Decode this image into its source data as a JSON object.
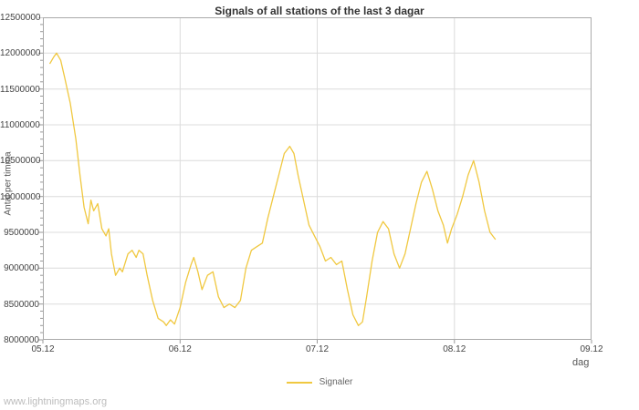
{
  "page": {
    "watermark": "www.lightningmaps.org"
  },
  "chart_data": {
    "type": "line",
    "title": "Signals of all stations of the last 3 dagar",
    "xlabel": "dag",
    "ylabel": "Antal per timma",
    "series_name": "Signaler",
    "line_color": "#f0c840",
    "grid": true,
    "legend_position": "bottom",
    "xlim": [
      0,
      4
    ],
    "ylim": [
      8000000,
      12500000
    ],
    "xticks": [
      {
        "pos": 0,
        "label": "05.12"
      },
      {
        "pos": 1,
        "label": "06.12"
      },
      {
        "pos": 2,
        "label": "07.12"
      },
      {
        "pos": 3,
        "label": "08.12"
      },
      {
        "pos": 4,
        "label": "09.12"
      }
    ],
    "yticks": [
      8000000,
      8500000,
      9000000,
      9500000,
      10000000,
      10500000,
      11000000,
      11500000,
      12000000,
      12500000
    ],
    "x": [
      0.05,
      0.08,
      0.1,
      0.13,
      0.16,
      0.2,
      0.24,
      0.27,
      0.3,
      0.33,
      0.35,
      0.37,
      0.4,
      0.43,
      0.46,
      0.48,
      0.5,
      0.53,
      0.56,
      0.58,
      0.62,
      0.65,
      0.68,
      0.7,
      0.73,
      0.76,
      0.8,
      0.84,
      0.88,
      0.9,
      0.93,
      0.96,
      1.0,
      1.04,
      1.08,
      1.1,
      1.13,
      1.16,
      1.2,
      1.24,
      1.28,
      1.32,
      1.36,
      1.4,
      1.44,
      1.48,
      1.52,
      1.56,
      1.6,
      1.64,
      1.68,
      1.72,
      1.76,
      1.8,
      1.83,
      1.86,
      1.9,
      1.94,
      1.98,
      2.02,
      2.06,
      2.1,
      2.14,
      2.18,
      2.22,
      2.26,
      2.3,
      2.33,
      2.36,
      2.4,
      2.44,
      2.48,
      2.52,
      2.56,
      2.6,
      2.64,
      2.68,
      2.72,
      2.76,
      2.8,
      2.84,
      2.88,
      2.92,
      2.95,
      2.98,
      3.02,
      3.06,
      3.1,
      3.14,
      3.18,
      3.22,
      3.26,
      3.3
    ],
    "values": [
      11850000,
      11950000,
      12000000,
      11900000,
      11650000,
      11300000,
      10800000,
      10300000,
      9850000,
      9620000,
      9950000,
      9800000,
      9900000,
      9550000,
      9450000,
      9550000,
      9200000,
      8900000,
      9000000,
      8950000,
      9200000,
      9250000,
      9150000,
      9250000,
      9200000,
      8900000,
      8550000,
      8300000,
      8250000,
      8200000,
      8280000,
      8220000,
      8450000,
      8800000,
      9050000,
      9150000,
      8950000,
      8700000,
      8900000,
      8950000,
      8600000,
      8450000,
      8500000,
      8450000,
      8550000,
      9000000,
      9250000,
      9300000,
      9350000,
      9700000,
      10000000,
      10300000,
      10600000,
      10700000,
      10600000,
      10300000,
      9950000,
      9600000,
      9450000,
      9300000,
      9100000,
      9150000,
      9050000,
      9100000,
      8700000,
      8350000,
      8200000,
      8250000,
      8600000,
      9100000,
      9500000,
      9650000,
      9550000,
      9200000,
      9000000,
      9200000,
      9550000,
      9900000,
      10200000,
      10350000,
      10100000,
      9800000,
      9600000,
      9350000,
      9550000,
      9750000,
      10000000,
      10300000,
      10500000,
      10200000,
      9800000,
      9500000,
      9400000
    ]
  }
}
